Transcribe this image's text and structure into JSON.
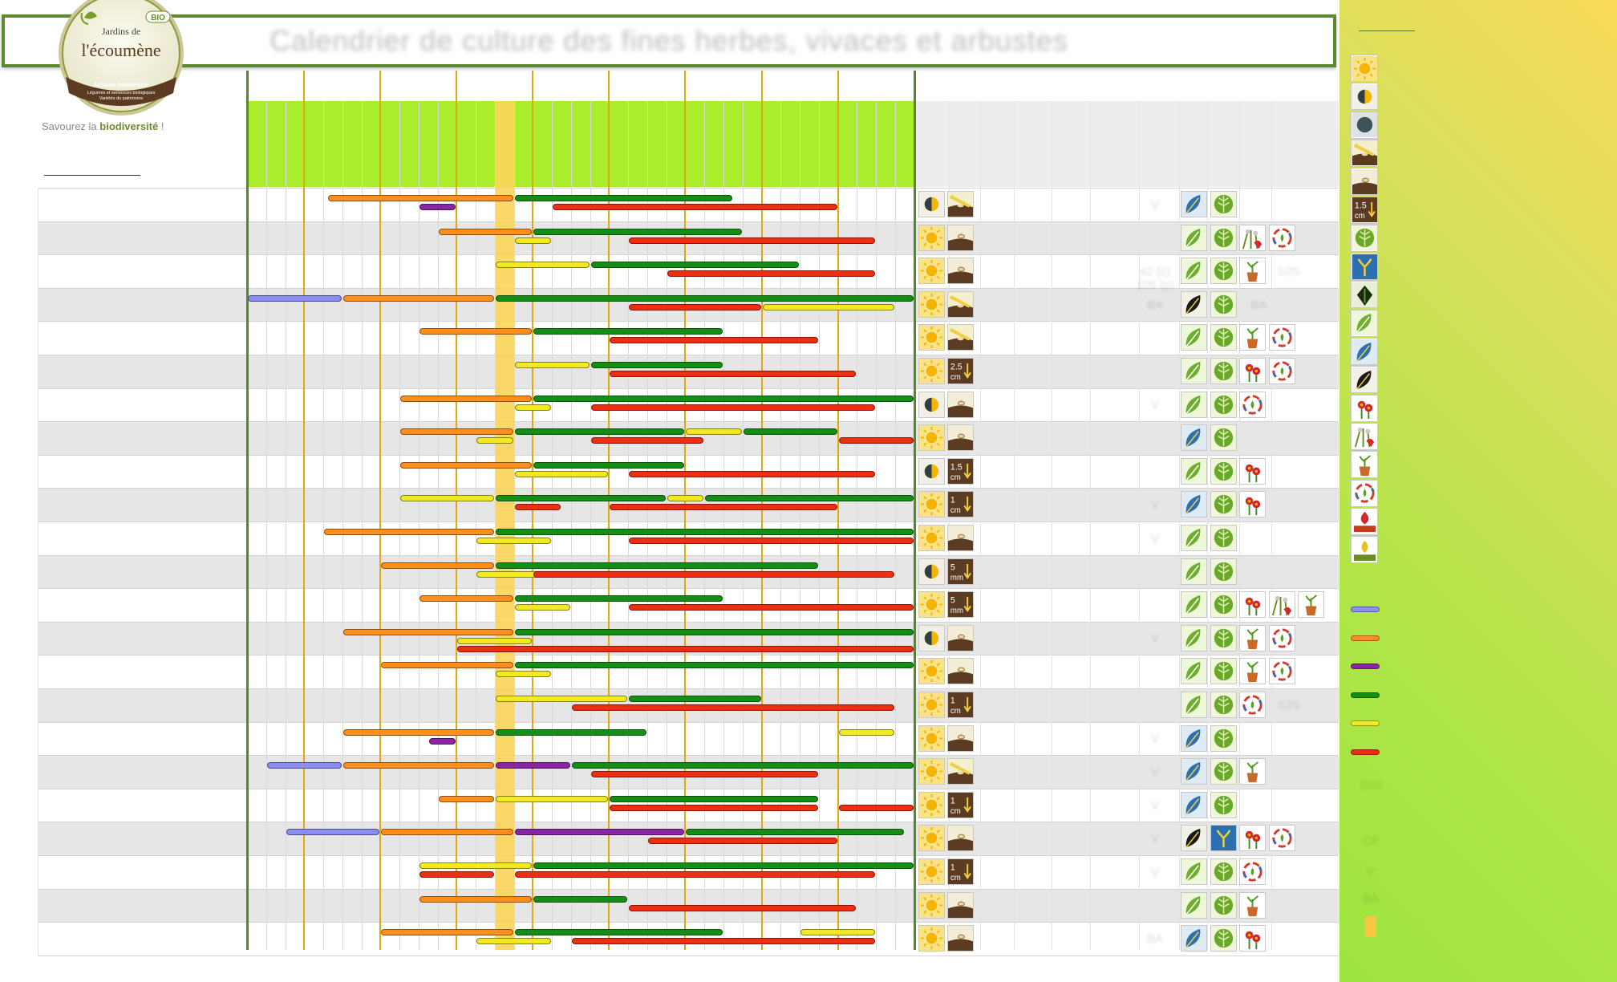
{
  "title": "Calendrier de culture des fines herbes, vivaces et arbustes",
  "logo": {
    "line1": "Jardins de",
    "line2": "l'écoumène",
    "badge": "BIO",
    "tag1": "Artisan semencier",
    "tag2": "Légumes et semences biologiques",
    "tag3": "Variétés du patrimoine"
  },
  "slogan": {
    "prefix": "Savourez la ",
    "emph": "biodiversité",
    "suffix": " !"
  },
  "colors": {
    "blue": "#8c8cf5",
    "orange": "#ff8f1a",
    "purple": "#8a26a6",
    "green": "#138f13",
    "yellow": "#f2ea21",
    "red": "#ef2d10",
    "frame": "#4f8a2b",
    "month_line": "#e2a810",
    "header_green": "#aaed2b"
  },
  "icon_types": [
    "sun-icon",
    "half-sun-icon",
    "shade-icon",
    "sow-surface-icon",
    "sow-cover-icon",
    "depth-1.5cm-icon",
    "leaf-icon",
    "sprout-blue-icon",
    "seed-dark-icon",
    "leaf-green-icon",
    "leaf-blue-icon",
    "seed-black-icon",
    "flower-icon",
    "pollinator-icon",
    "pot-icon",
    "cycle-icon",
    "seed-saving-icon",
    "carrot-icon"
  ],
  "legend": {
    "depth_labels": [
      "1.5",
      "cm"
    ],
    "texts": [
      "S2S",
      "CF",
      "V",
      "BA"
    ]
  },
  "rows": [
    {
      "icons1": [
        "half-sun-icon",
        "sow-surface-icon"
      ],
      "note": "V",
      "icons2": [
        "leaf-blue-icon",
        "leaf-icon"
      ]
    },
    {
      "icons1": [
        "sun-icon",
        "sow-cover-icon"
      ],
      "note": "",
      "icons2": [
        "leaf-green-icon",
        "leaf-icon",
        "pollinator-icon",
        "cycle-icon"
      ]
    },
    {
      "icons1": [
        "sun-icon",
        "sow-cover-icon"
      ],
      "note": "42 (s) 105 (p)",
      "icons2": [
        "leaf-green-icon",
        "leaf-icon",
        "pot-icon"
      ],
      "extra": "S2S"
    },
    {
      "icons1": [
        "sun-icon",
        "sow-surface-icon"
      ],
      "note": "BA",
      "icons2": [
        "seed-black-icon",
        "leaf-icon"
      ],
      "extra": "BA"
    },
    {
      "icons1": [
        "sun-icon",
        "sow-surface-icon"
      ],
      "note": "",
      "icons2": [
        "leaf-green-icon",
        "leaf-icon",
        "pot-icon",
        "cycle-icon"
      ]
    },
    {
      "icons1": [
        "sun-icon",
        "depth-2.5cm-icon"
      ],
      "note": "",
      "icons2": [
        "leaf-green-icon",
        "leaf-icon",
        "flower-icon",
        "cycle-icon"
      ]
    },
    {
      "icons1": [
        "half-sun-icon",
        "sow-cover-icon"
      ],
      "note": "V",
      "icons2": [
        "leaf-green-icon",
        "leaf-icon",
        "cycle-icon"
      ]
    },
    {
      "icons1": [
        "sun-icon",
        "sow-cover-icon"
      ],
      "note": "",
      "icons2": [
        "leaf-blue-icon",
        "leaf-icon"
      ]
    },
    {
      "icons1": [
        "half-sun-icon",
        "depth-1.5cm-icon"
      ],
      "note": "",
      "icons2": [
        "leaf-green-icon",
        "leaf-icon",
        "flower-icon"
      ]
    },
    {
      "icons1": [
        "sun-icon",
        "depth-1cm-icon"
      ],
      "note": "V",
      "icons2": [
        "leaf-blue-icon",
        "leaf-icon",
        "flower-icon"
      ]
    },
    {
      "icons1": [
        "sun-icon",
        "sow-cover-icon"
      ],
      "note": "V",
      "icons2": [
        "leaf-green-icon",
        "leaf-icon"
      ]
    },
    {
      "icons1": [
        "half-sun-icon",
        "depth-5mm-icon"
      ],
      "note": "",
      "icons2": [
        "leaf-green-icon",
        "leaf-icon"
      ]
    },
    {
      "icons1": [
        "sun-icon",
        "depth-5mm-icon"
      ],
      "note": "",
      "icons2": [
        "leaf-green-icon",
        "leaf-icon",
        "flower-icon",
        "pollinator-icon",
        "pot-icon"
      ]
    },
    {
      "icons1": [
        "half-sun-icon",
        "sow-cover-icon"
      ],
      "note": "V",
      "icons2": [
        "leaf-green-icon",
        "leaf-icon",
        "pot-icon",
        "cycle-icon"
      ]
    },
    {
      "icons1": [
        "sun-icon",
        "sow-cover-icon"
      ],
      "note": "",
      "icons2": [
        "leaf-green-icon",
        "leaf-icon",
        "pot-icon",
        "cycle-icon"
      ]
    },
    {
      "icons1": [
        "sun-icon",
        "depth-1cm-icon"
      ],
      "note": "",
      "icons2": [
        "leaf-green-icon",
        "leaf-icon",
        "cycle-icon"
      ],
      "extra": "S2S"
    },
    {
      "icons1": [
        "sun-icon",
        "sow-cover-icon"
      ],
      "note": "V",
      "icons2": [
        "leaf-blue-icon",
        "leaf-icon"
      ]
    },
    {
      "icons1": [
        "sun-icon",
        "sow-surface-icon"
      ],
      "note": "V",
      "icons2": [
        "leaf-blue-icon",
        "leaf-icon",
        "pot-icon"
      ]
    },
    {
      "icons1": [
        "sun-icon",
        "depth-1cm-icon"
      ],
      "note": "V",
      "icons2": [
        "leaf-blue-icon",
        "leaf-icon"
      ]
    },
    {
      "icons1": [
        "sun-icon",
        "sow-cover-icon"
      ],
      "note": "V",
      "icons2": [
        "seed-black-icon",
        "sprout-blue-icon",
        "flower-icon",
        "cycle-icon"
      ]
    },
    {
      "icons1": [
        "sun-icon",
        "depth-1cm-icon"
      ],
      "note": "V",
      "icons2": [
        "leaf-green-icon",
        "leaf-icon",
        "cycle-icon"
      ]
    },
    {
      "icons1": [
        "sun-icon",
        "sow-cover-icon"
      ],
      "note": "",
      "icons2": [
        "leaf-green-icon",
        "leaf-icon",
        "pot-icon"
      ]
    },
    {
      "icons1": [
        "sun-icon",
        "sow-cover-icon"
      ],
      "note": "BA",
      "icons2": [
        "leaf-blue-icon",
        "leaf-icon",
        "flower-icon"
      ]
    }
  ],
  "bars": [
    [
      {
        "c": "orange",
        "s": 4.2,
        "e": 14.0,
        "l": 0
      },
      {
        "c": "purple",
        "s": 9.0,
        "e": 11.0,
        "l": 1
      },
      {
        "c": "green",
        "s": 14.0,
        "e": 25.5,
        "l": 0
      },
      {
        "c": "red",
        "s": 16.0,
        "e": 31.0,
        "l": 1
      }
    ],
    [
      {
        "c": "orange",
        "s": 10.0,
        "e": 15.0,
        "l": 0
      },
      {
        "c": "yellow",
        "s": 14.0,
        "e": 16.0,
        "l": 1
      },
      {
        "c": "green",
        "s": 15.0,
        "e": 26.0,
        "l": 0
      },
      {
        "c": "red",
        "s": 20.0,
        "e": 33.0,
        "l": 1
      }
    ],
    [
      {
        "c": "yellow",
        "s": 13.0,
        "e": 18.0,
        "l": 0
      },
      {
        "c": "green",
        "s": 18.0,
        "e": 29.0,
        "l": 0
      },
      {
        "c": "red",
        "s": 22.0,
        "e": 33.0,
        "l": 1
      }
    ],
    [
      {
        "c": "blue",
        "s": 0.0,
        "e": 5.0,
        "l": 0
      },
      {
        "c": "orange",
        "s": 5.0,
        "e": 13.0,
        "l": 0
      },
      {
        "c": "green",
        "s": 13.0,
        "e": 35.0,
        "l": 0
      },
      {
        "c": "red",
        "s": 20.0,
        "e": 27.0,
        "l": 1
      },
      {
        "c": "yellow",
        "s": 27.0,
        "e": 34.0,
        "l": 1
      }
    ],
    [
      {
        "c": "orange",
        "s": 9.0,
        "e": 15.0,
        "l": 0
      },
      {
        "c": "green",
        "s": 15.0,
        "e": 25.0,
        "l": 0
      },
      {
        "c": "red",
        "s": 19.0,
        "e": 30.0,
        "l": 1
      }
    ],
    [
      {
        "c": "yellow",
        "s": 14.0,
        "e": 18.0,
        "l": 0
      },
      {
        "c": "green",
        "s": 18.0,
        "e": 25.0,
        "l": 0
      },
      {
        "c": "red",
        "s": 19.0,
        "e": 32.0,
        "l": 1
      }
    ],
    [
      {
        "c": "orange",
        "s": 8.0,
        "e": 15.0,
        "l": 0
      },
      {
        "c": "yellow",
        "s": 14.0,
        "e": 16.0,
        "l": 1
      },
      {
        "c": "green",
        "s": 15.0,
        "e": 35.0,
        "l": 0
      },
      {
        "c": "red",
        "s": 18.0,
        "e": 33.0,
        "l": 1
      }
    ],
    [
      {
        "c": "orange",
        "s": 8.0,
        "e": 14.0,
        "l": 0
      },
      {
        "c": "yellow",
        "s": 12.0,
        "e": 14.0,
        "l": 1
      },
      {
        "c": "green",
        "s": 14.0,
        "e": 23.0,
        "l": 0
      },
      {
        "c": "yellow",
        "s": 23.0,
        "e": 26.0,
        "l": 0
      },
      {
        "c": "green",
        "s": 26.0,
        "e": 31.0,
        "l": 0
      },
      {
        "c": "red",
        "s": 18.0,
        "e": 24.0,
        "l": 1
      },
      {
        "c": "red",
        "s": 31.0,
        "e": 35.0,
        "l": 1
      }
    ],
    [
      {
        "c": "orange",
        "s": 8.0,
        "e": 15.0,
        "l": 0
      },
      {
        "c": "yellow",
        "s": 14.0,
        "e": 19.0,
        "l": 1
      },
      {
        "c": "green",
        "s": 15.0,
        "e": 23.0,
        "l": 0
      },
      {
        "c": "red",
        "s": 20.0,
        "e": 33.0,
        "l": 1
      }
    ],
    [
      {
        "c": "yellow",
        "s": 8.0,
        "e": 13.0,
        "l": 0
      },
      {
        "c": "green",
        "s": 13.0,
        "e": 22.0,
        "l": 0
      },
      {
        "c": "yellow",
        "s": 22.0,
        "e": 24.0,
        "l": 0
      },
      {
        "c": "green",
        "s": 24.0,
        "e": 35.0,
        "l": 0
      },
      {
        "c": "red",
        "s": 14.0,
        "e": 16.5,
        "l": 1
      },
      {
        "c": "red",
        "s": 19.0,
        "e": 31.0,
        "l": 1
      }
    ],
    [
      {
        "c": "orange",
        "s": 4.0,
        "e": 13.0,
        "l": 0
      },
      {
        "c": "yellow",
        "s": 12.0,
        "e": 16.0,
        "l": 1
      },
      {
        "c": "green",
        "s": 13.0,
        "e": 35.0,
        "l": 0
      },
      {
        "c": "red",
        "s": 20.0,
        "e": 35.0,
        "l": 1
      }
    ],
    [
      {
        "c": "orange",
        "s": 7.0,
        "e": 13.0,
        "l": 0
      },
      {
        "c": "yellow",
        "s": 12.0,
        "e": 17.0,
        "l": 1
      },
      {
        "c": "green",
        "s": 13.0,
        "e": 30.0,
        "l": 0
      },
      {
        "c": "red",
        "s": 15.0,
        "e": 34.0,
        "l": 1
      }
    ],
    [
      {
        "c": "orange",
        "s": 9.0,
        "e": 14.0,
        "l": 0
      },
      {
        "c": "yellow",
        "s": 14.0,
        "e": 17.0,
        "l": 1
      },
      {
        "c": "green",
        "s": 14.0,
        "e": 25.0,
        "l": 0
      },
      {
        "c": "red",
        "s": 20.0,
        "e": 35.0,
        "l": 1
      }
    ],
    [
      {
        "c": "orange",
        "s": 5.0,
        "e": 14.0,
        "l": 0
      },
      {
        "c": "yellow",
        "s": 11.0,
        "e": 15.0,
        "l": 1
      },
      {
        "c": "green",
        "s": 14.0,
        "e": 35.0,
        "l": 0
      },
      {
        "c": "red",
        "s": 11.0,
        "e": 35.0,
        "l": 2
      }
    ],
    [
      {
        "c": "orange",
        "s": 7.0,
        "e": 14.0,
        "l": 0
      },
      {
        "c": "yellow",
        "s": 13.0,
        "e": 16.0,
        "l": 1
      },
      {
        "c": "green",
        "s": 14.0,
        "e": 35.0,
        "l": 0
      }
    ],
    [
      {
        "c": "yellow",
        "s": 13.0,
        "e": 20.0,
        "l": 0
      },
      {
        "c": "green",
        "s": 20.0,
        "e": 27.0,
        "l": 0
      },
      {
        "c": "red",
        "s": 17.0,
        "e": 34.0,
        "l": 1
      }
    ],
    [
      {
        "c": "orange",
        "s": 5.0,
        "e": 13.0,
        "l": 0
      },
      {
        "c": "purple",
        "s": 9.5,
        "e": 11.0,
        "l": 1
      },
      {
        "c": "green",
        "s": 13.0,
        "e": 21.0,
        "l": 0
      },
      {
        "c": "yellow",
        "s": 31.0,
        "e": 34.0,
        "l": 0
      }
    ],
    [
      {
        "c": "blue",
        "s": 1.0,
        "e": 5.0,
        "l": 0
      },
      {
        "c": "orange",
        "s": 5.0,
        "e": 13.0,
        "l": 0
      },
      {
        "c": "purple",
        "s": 13.0,
        "e": 17.0,
        "l": 0
      },
      {
        "c": "green",
        "s": 17.0,
        "e": 35.0,
        "l": 0
      },
      {
        "c": "red",
        "s": 18.0,
        "e": 30.0,
        "l": 1
      }
    ],
    [
      {
        "c": "orange",
        "s": 10.0,
        "e": 13.0,
        "l": 0
      },
      {
        "c": "yellow",
        "s": 13.0,
        "e": 19.0,
        "l": 0
      },
      {
        "c": "green",
        "s": 19.0,
        "e": 30.0,
        "l": 0
      },
      {
        "c": "red",
        "s": 19.0,
        "e": 30.0,
        "l": 1
      },
      {
        "c": "red",
        "s": 31.0,
        "e": 35.0,
        "l": 1
      }
    ],
    [
      {
        "c": "blue",
        "s": 2.0,
        "e": 7.0,
        "l": 0
      },
      {
        "c": "orange",
        "s": 7.0,
        "e": 14.0,
        "l": 0
      },
      {
        "c": "purple",
        "s": 14.0,
        "e": 23.0,
        "l": 0
      },
      {
        "c": "green",
        "s": 23.0,
        "e": 34.5,
        "l": 0
      },
      {
        "c": "red",
        "s": 21.0,
        "e": 31.0,
        "l": 1
      }
    ],
    [
      {
        "c": "yellow",
        "s": 9.0,
        "e": 15.0,
        "l": 0
      },
      {
        "c": "red",
        "s": 9.0,
        "e": 13.0,
        "l": 1
      },
      {
        "c": "green",
        "s": 15.0,
        "e": 35.0,
        "l": 0
      },
      {
        "c": "red",
        "s": 14.0,
        "e": 33.0,
        "l": 1
      }
    ],
    [
      {
        "c": "orange",
        "s": 9.0,
        "e": 15.0,
        "l": 0
      },
      {
        "c": "green",
        "s": 15.0,
        "e": 20.0,
        "l": 0
      },
      {
        "c": "red",
        "s": 20.0,
        "e": 32.0,
        "l": 1
      }
    ],
    [
      {
        "c": "orange",
        "s": 7.0,
        "e": 14.0,
        "l": 0
      },
      {
        "c": "yellow",
        "s": 12.0,
        "e": 16.0,
        "l": 1
      },
      {
        "c": "green",
        "s": 14.0,
        "e": 25.0,
        "l": 0
      },
      {
        "c": "red",
        "s": 17.0,
        "e": 33.0,
        "l": 1
      },
      {
        "c": "yellow",
        "s": 29.0,
        "e": 33.0,
        "l": 0
      }
    ]
  ]
}
